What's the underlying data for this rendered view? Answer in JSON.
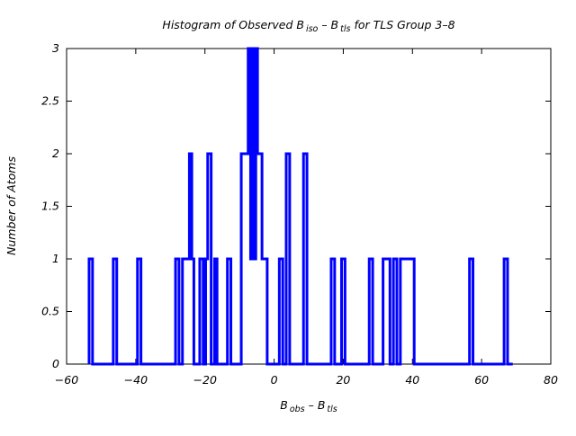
{
  "chart_data": {
    "type": "histogram-step",
    "title_parts": [
      "Histogram of Observed B",
      "iso",
      " – B",
      "tls",
      " for TLS Group 3–8"
    ],
    "xlabel_parts": [
      "B",
      "obs",
      " – B",
      "tls"
    ],
    "ylabel": "Number of Atoms",
    "xlim": [
      -60,
      80
    ],
    "ylim": [
      0,
      3
    ],
    "xticks": [
      -60,
      -40,
      -20,
      0,
      20,
      40,
      60,
      80
    ],
    "xtick_labels": [
      "−60",
      "−40",
      "−20",
      "0",
      "20",
      "40",
      "60",
      "80"
    ],
    "yticks": [
      0,
      0.5,
      1,
      1.5,
      2,
      2.5,
      3
    ],
    "ytick_labels": [
      "0",
      "0.5",
      "1",
      "1.5",
      "2",
      "2.5",
      "3"
    ],
    "grid": false,
    "legend": "none",
    "line_color": "#0000ff",
    "step_x": [
      -53.5,
      -53.5,
      -52.5,
      -52.5,
      -46.5,
      -46.5,
      -45.5,
      -45.5,
      -39.5,
      -39.5,
      -38.5,
      -38.5,
      -28.5,
      -28.5,
      -27.5,
      -27.5,
      -26.5,
      -26.5,
      -24.5,
      -24.5,
      -23.8,
      -23.8,
      -23.2,
      -23.2,
      -21.5,
      -21.5,
      -20.5,
      -20.5,
      -19.8,
      -19.8,
      -19.2,
      -19.2,
      -18.2,
      -18.2,
      -17.2,
      -17.2,
      -16.5,
      -16.5,
      -15.5,
      -15.5,
      -13.5,
      -13.5,
      -12.5,
      -12.5,
      -9.5,
      -9.5,
      -7.5,
      -7.5,
      -6.8,
      -6.8,
      -6.3,
      -6.3,
      -5.8,
      -5.8,
      -5.3,
      -5.3,
      -4.8,
      -4.8,
      -4.3,
      -4.3,
      -3.5,
      -3.5,
      -2.0,
      -2.0,
      1.5,
      1.5,
      2.5,
      2.5,
      3.5,
      3.5,
      4.5,
      4.5,
      8.5,
      8.5,
      9.5,
      9.5,
      16.5,
      16.5,
      17.5,
      17.5,
      19.5,
      19.5,
      20.5,
      20.5,
      27.5,
      27.5,
      28.5,
      28.5,
      31.5,
      31.5,
      33.5,
      33.5,
      34.5,
      34.5,
      35.5,
      35.5,
      36.5,
      36.5,
      37.5,
      37.5,
      40.5,
      40.5,
      56.5,
      56.5,
      57.5,
      57.5,
      66.5,
      66.5,
      67.5,
      67.5,
      69.0
    ],
    "step_y": [
      0,
      1,
      1,
      0,
      0,
      1,
      1,
      0,
      0,
      1,
      1,
      0,
      0,
      1,
      1,
      0,
      0,
      1,
      1,
      2,
      2,
      1,
      1,
      0,
      0,
      1,
      1,
      0,
      0,
      1,
      1,
      2,
      2,
      0,
      0,
      1,
      1,
      0,
      0,
      0,
      0,
      1,
      1,
      0,
      0,
      2,
      2,
      3,
      3,
      1,
      1,
      3,
      3,
      1,
      1,
      3,
      3,
      2,
      2,
      2,
      2,
      1,
      1,
      0,
      0,
      1,
      1,
      0,
      0,
      2,
      2,
      0,
      0,
      2,
      2,
      0,
      0,
      1,
      1,
      0,
      0,
      1,
      1,
      0,
      0,
      1,
      1,
      0,
      0,
      1,
      1,
      0,
      0,
      1,
      1,
      0,
      0,
      1,
      1,
      1,
      1,
      0,
      0,
      1,
      1,
      0,
      0,
      1,
      1,
      0,
      0
    ]
  }
}
